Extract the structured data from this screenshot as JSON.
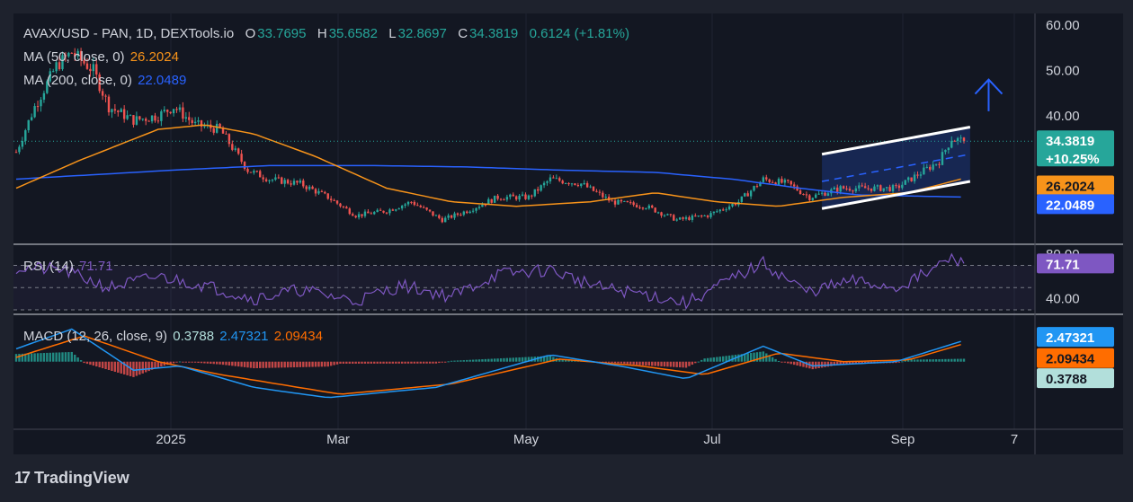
{
  "header": {
    "symbol": "AVAX/USD - PAN, 1D, DEXTools.io",
    "o_label": "O",
    "o_value": "33.7695",
    "h_label": "H",
    "h_value": "35.6582",
    "l_label": "L",
    "l_value": "32.8697",
    "c_label": "C",
    "c_value": "34.3819",
    "change": "0.6124 (+1.81%)",
    "ma50_label": "MA (50, close, 0)",
    "ma50_value": "26.2024",
    "ma200_label": "MA (200, close, 0)",
    "ma200_value": "22.0489"
  },
  "rsi_panel": {
    "label": "RSI (14)",
    "value": "71.71",
    "ticks": [
      "80.00",
      "40.00"
    ]
  },
  "macd_panel": {
    "label": "MACD (12, 26, close, 9)",
    "hist": "0.3788",
    "macd": "2.47321",
    "signal": "2.09434"
  },
  "price_axis": {
    "ticks": [
      "60.00",
      "50.00",
      "40.00"
    ]
  },
  "price_tags": {
    "close": "34.3819",
    "change_pct": "+10.25%",
    "ma50": "26.2024",
    "ma200": "22.0489",
    "rsi": "71.71",
    "macd": "2.47321",
    "signal": "2.09434",
    "hist": "0.3788"
  },
  "time_axis": {
    "labels": [
      "2025",
      "Mar",
      "May",
      "Jul",
      "Sep",
      "7"
    ]
  },
  "branding": {
    "logo_text": "TradingView",
    "logo_mark": "17"
  },
  "colors": {
    "background": "#1e222d",
    "up": "#26a69a",
    "down": "#ef5350",
    "ma50": "#f7931a",
    "ma200": "#2962ff",
    "rsi": "#7e57c2",
    "macd": "#2196f3",
    "signal": "#ff6d00",
    "channel": "#ffffff"
  },
  "chart_data": [
    {
      "type": "candlestick",
      "title": "AVAX/USD - PAN, 1D, DEXTools.io",
      "x_labels": [
        "2025",
        "Mar",
        "May",
        "Jul",
        "Sep",
        "7"
      ],
      "ylim": [
        14,
        62
      ],
      "last_close": 34.3819,
      "anchors_close": [
        {
          "date": "2024-11-20",
          "close": 32
        },
        {
          "date": "2024-11-26",
          "close": 42
        },
        {
          "date": "2024-12-03",
          "close": 51
        },
        {
          "date": "2024-12-08",
          "close": 54
        },
        {
          "date": "2024-12-15",
          "close": 50
        },
        {
          "date": "2024-12-20",
          "close": 42
        },
        {
          "date": "2024-12-28",
          "close": 39
        },
        {
          "date": "2025-01-05",
          "close": 40
        },
        {
          "date": "2025-01-10",
          "close": 42
        },
        {
          "date": "2025-01-17",
          "close": 38
        },
        {
          "date": "2025-01-25",
          "close": 37
        },
        {
          "date": "2025-02-03",
          "close": 28
        },
        {
          "date": "2025-02-10",
          "close": 26
        },
        {
          "date": "2025-02-20",
          "close": 25
        },
        {
          "date": "2025-03-01",
          "close": 22
        },
        {
          "date": "2025-03-10",
          "close": 18
        },
        {
          "date": "2025-03-20",
          "close": 19
        },
        {
          "date": "2025-03-28",
          "close": 21
        },
        {
          "date": "2025-04-07",
          "close": 17
        },
        {
          "date": "2025-04-15",
          "close": 19
        },
        {
          "date": "2025-04-25",
          "close": 22
        },
        {
          "date": "2025-05-05",
          "close": 22
        },
        {
          "date": "2025-05-12",
          "close": 26
        },
        {
          "date": "2025-05-22",
          "close": 25
        },
        {
          "date": "2025-06-01",
          "close": 21
        },
        {
          "date": "2025-06-12",
          "close": 20
        },
        {
          "date": "2025-06-22",
          "close": 17
        },
        {
          "date": "2025-07-02",
          "close": 18
        },
        {
          "date": "2025-07-12",
          "close": 21
        },
        {
          "date": "2025-07-20",
          "close": 26
        },
        {
          "date": "2025-07-28",
          "close": 25
        },
        {
          "date": "2025-08-04",
          "close": 22
        },
        {
          "date": "2025-08-14",
          "close": 24
        },
        {
          "date": "2025-08-22",
          "close": 24
        },
        {
          "date": "2025-09-01",
          "close": 24
        },
        {
          "date": "2025-09-08",
          "close": 27
        },
        {
          "date": "2025-09-15",
          "close": 30
        },
        {
          "date": "2025-09-19",
          "close": 35
        },
        {
          "date": "2025-09-23",
          "close": 34.38
        }
      ],
      "ma50": [
        {
          "date": "2024-11-20",
          "value": 24
        },
        {
          "date": "2024-12-10",
          "value": 30
        },
        {
          "date": "2025-01-05",
          "value": 37
        },
        {
          "date": "2025-01-20",
          "value": 38
        },
        {
          "date": "2025-02-05",
          "value": 36
        },
        {
          "date": "2025-02-25",
          "value": 31
        },
        {
          "date": "2025-03-20",
          "value": 24
        },
        {
          "date": "2025-04-10",
          "value": 21
        },
        {
          "date": "2025-05-01",
          "value": 20
        },
        {
          "date": "2025-05-25",
          "value": 21
        },
        {
          "date": "2025-06-15",
          "value": 23
        },
        {
          "date": "2025-07-05",
          "value": 21
        },
        {
          "date": "2025-07-25",
          "value": 20
        },
        {
          "date": "2025-08-15",
          "value": 22
        },
        {
          "date": "2025-09-05",
          "value": 23
        },
        {
          "date": "2025-09-23",
          "value": 26.2024
        }
      ],
      "ma200": [
        {
          "date": "2024-11-20",
          "value": 26
        },
        {
          "date": "2025-01-10",
          "value": 28
        },
        {
          "date": "2025-02-10",
          "value": 29
        },
        {
          "date": "2025-03-15",
          "value": 29
        },
        {
          "date": "2025-04-15",
          "value": 28.7
        },
        {
          "date": "2025-05-15",
          "value": 28
        },
        {
          "date": "2025-06-15",
          "value": 27.5
        },
        {
          "date": "2025-07-10",
          "value": 26
        },
        {
          "date": "2025-08-01",
          "value": 24
        },
        {
          "date": "2025-08-20",
          "value": 22.5
        },
        {
          "date": "2025-09-23",
          "value": 22.0489
        }
      ],
      "channel": {
        "upper": [
          {
            "date": "2025-08-08",
            "value": 31.5
          },
          {
            "date": "2025-09-25",
            "value": 37.5
          }
        ],
        "lower": [
          {
            "date": "2025-08-08",
            "value": 19.5
          },
          {
            "date": "2025-09-25",
            "value": 25.5
          }
        ],
        "middle": [
          {
            "date": "2025-08-08",
            "value": 25.5
          },
          {
            "date": "2025-09-25",
            "value": 31.5
          }
        ]
      },
      "arrow": {
        "date": "2025-10-01",
        "from": 41,
        "to": 48
      }
    },
    {
      "type": "line",
      "title": "RSI (14)",
      "ylim": [
        30,
        85
      ],
      "levels": [
        70,
        50,
        30
      ],
      "values": [
        {
          "date": "2024-11-20",
          "value": 68
        },
        {
          "date": "2024-12-05",
          "value": 66
        },
        {
          "date": "2024-12-20",
          "value": 50
        },
        {
          "date": "2025-01-05",
          "value": 60
        },
        {
          "date": "2025-01-20",
          "value": 52
        },
        {
          "date": "2025-02-05",
          "value": 40
        },
        {
          "date": "2025-02-20",
          "value": 48
        },
        {
          "date": "2025-03-10",
          "value": 38
        },
        {
          "date": "2025-03-25",
          "value": 52
        },
        {
          "date": "2025-04-10",
          "value": 42
        },
        {
          "date": "2025-04-25",
          "value": 62
        },
        {
          "date": "2025-05-12",
          "value": 66
        },
        {
          "date": "2025-05-28",
          "value": 50
        },
        {
          "date": "2025-06-12",
          "value": 44
        },
        {
          "date": "2025-06-25",
          "value": 36
        },
        {
          "date": "2025-07-10",
          "value": 58
        },
        {
          "date": "2025-07-20",
          "value": 72
        },
        {
          "date": "2025-08-03",
          "value": 46
        },
        {
          "date": "2025-08-18",
          "value": 56
        },
        {
          "date": "2025-09-01",
          "value": 50
        },
        {
          "date": "2025-09-12",
          "value": 64
        },
        {
          "date": "2025-09-18",
          "value": 76
        },
        {
          "date": "2025-09-23",
          "value": 71.71
        }
      ]
    },
    {
      "type": "line",
      "title": "MACD (12, 26, close, 9)",
      "ylim": [
        -6,
        5
      ],
      "series": [
        {
          "name": "MACD",
          "values": [
            {
              "date": "2024-11-20",
              "value": 1.5
            },
            {
              "date": "2024-12-08",
              "value": 3.8
            },
            {
              "date": "2024-12-28",
              "value": -1
            },
            {
              "date": "2025-01-12",
              "value": -0.5
            },
            {
              "date": "2025-02-05",
              "value": -3
            },
            {
              "date": "2025-03-01",
              "value": -4.2
            },
            {
              "date": "2025-04-05",
              "value": -3
            },
            {
              "date": "2025-05-12",
              "value": 0.8
            },
            {
              "date": "2025-06-05",
              "value": -0.6
            },
            {
              "date": "2025-06-25",
              "value": -2
            },
            {
              "date": "2025-07-20",
              "value": 1.8
            },
            {
              "date": "2025-08-05",
              "value": -0.5
            },
            {
              "date": "2025-09-01",
              "value": 0
            },
            {
              "date": "2025-09-23",
              "value": 2.47321
            }
          ]
        },
        {
          "name": "Signal",
          "values": [
            {
              "date": "2024-11-20",
              "value": 0.5
            },
            {
              "date": "2024-12-12",
              "value": 3
            },
            {
              "date": "2025-01-05",
              "value": 0
            },
            {
              "date": "2025-01-25",
              "value": -1.5
            },
            {
              "date": "2025-03-05",
              "value": -3.8
            },
            {
              "date": "2025-04-10",
              "value": -2.6
            },
            {
              "date": "2025-05-15",
              "value": 0.3
            },
            {
              "date": "2025-06-10",
              "value": -0.5
            },
            {
              "date": "2025-07-01",
              "value": -1.5
            },
            {
              "date": "2025-07-25",
              "value": 1
            },
            {
              "date": "2025-08-15",
              "value": 0
            },
            {
              "date": "2025-09-05",
              "value": 0.2
            },
            {
              "date": "2025-09-23",
              "value": 2.09434
            }
          ]
        }
      ]
    }
  ]
}
